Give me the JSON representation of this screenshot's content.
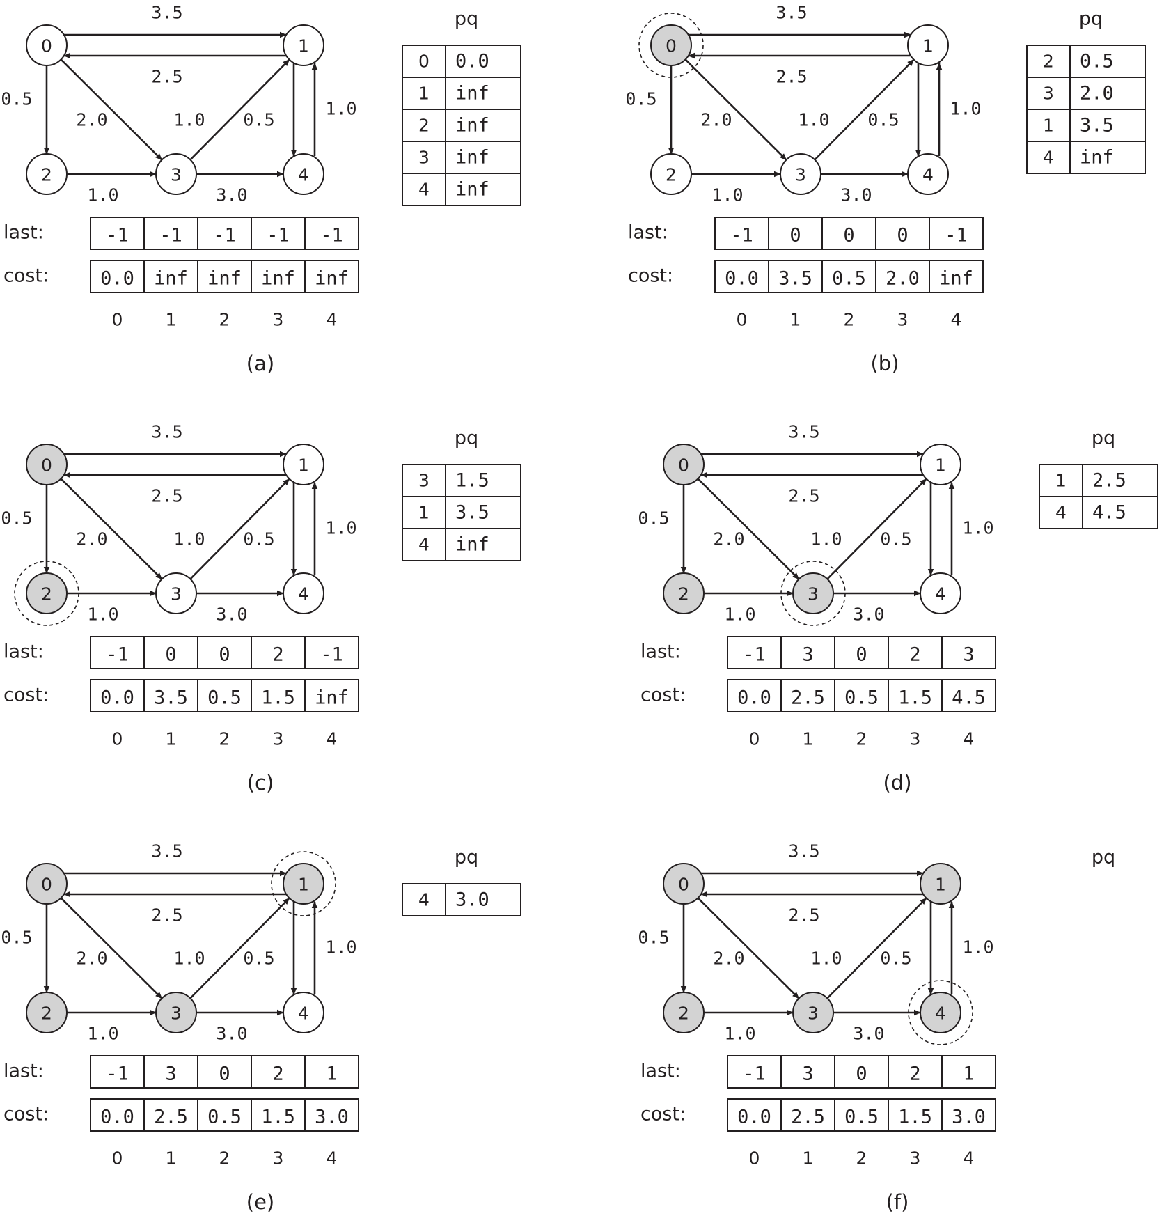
{
  "colors": {
    "ink": "#231f20",
    "visited_fill": "#d3d3d3",
    "unvisited_fill": "#ffffff",
    "background": "#ffffff"
  },
  "row_labels": {
    "last": "last:",
    "cost": "cost:"
  },
  "pq_title": "pq",
  "index_labels": [
    "0",
    "1",
    "2",
    "3",
    "4"
  ],
  "node_labels": [
    "0",
    "1",
    "2",
    "3",
    "4"
  ],
  "edges": [
    {
      "from": 0,
      "to": 1,
      "weight": "3.5"
    },
    {
      "from": 1,
      "to": 0,
      "weight": "2.5"
    },
    {
      "from": 0,
      "to": 2,
      "weight": "0.5"
    },
    {
      "from": 0,
      "to": 3,
      "weight": "2.0"
    },
    {
      "from": 2,
      "to": 3,
      "weight": "1.0"
    },
    {
      "from": 3,
      "to": 1,
      "weight": "1.0"
    },
    {
      "from": 3,
      "to": 4,
      "weight": "3.0"
    },
    {
      "from": 1,
      "to": 4,
      "weight": "0.5"
    },
    {
      "from": 4,
      "to": 1,
      "weight": "1.0"
    }
  ],
  "panels": [
    {
      "caption": "(a)",
      "visited": [],
      "current": null,
      "last": [
        "-1",
        "-1",
        "-1",
        "-1",
        "-1"
      ],
      "cost": [
        "0.0",
        "inf",
        "inf",
        "inf",
        "inf"
      ],
      "pq": [
        [
          "0",
          "0.0"
        ],
        [
          "1",
          "inf"
        ],
        [
          "2",
          "inf"
        ],
        [
          "3",
          "inf"
        ],
        [
          "4",
          "inf"
        ]
      ]
    },
    {
      "caption": "(b)",
      "visited": [
        0
      ],
      "current": 0,
      "last": [
        "-1",
        "0",
        "0",
        "0",
        "-1"
      ],
      "cost": [
        "0.0",
        "3.5",
        "0.5",
        "2.0",
        "inf"
      ],
      "pq": [
        [
          "2",
          "0.5"
        ],
        [
          "3",
          "2.0"
        ],
        [
          "1",
          "3.5"
        ],
        [
          "4",
          "inf"
        ]
      ]
    },
    {
      "caption": "(c)",
      "visited": [
        0,
        2
      ],
      "current": 2,
      "last": [
        "-1",
        "0",
        "0",
        "2",
        "-1"
      ],
      "cost": [
        "0.0",
        "3.5",
        "0.5",
        "1.5",
        "inf"
      ],
      "pq": [
        [
          "3",
          "1.5"
        ],
        [
          "1",
          "3.5"
        ],
        [
          "4",
          "inf"
        ]
      ]
    },
    {
      "caption": "(d)",
      "visited": [
        0,
        2,
        3
      ],
      "current": 3,
      "last": [
        "-1",
        "3",
        "0",
        "2",
        "3"
      ],
      "cost": [
        "0.0",
        "2.5",
        "0.5",
        "1.5",
        "4.5"
      ],
      "pq": [
        [
          "1",
          "2.5"
        ],
        [
          "4",
          "4.5"
        ]
      ]
    },
    {
      "caption": "(e)",
      "visited": [
        0,
        2,
        3,
        1
      ],
      "current": 1,
      "last": [
        "-1",
        "3",
        "0",
        "2",
        "1"
      ],
      "cost": [
        "0.0",
        "2.5",
        "0.5",
        "1.5",
        "3.0"
      ],
      "pq": [
        [
          "4",
          "3.0"
        ]
      ]
    },
    {
      "caption": "(f)",
      "visited": [
        0,
        2,
        3,
        1,
        4
      ],
      "current": 4,
      "last": [
        "-1",
        "3",
        "0",
        "2",
        "1"
      ],
      "cost": [
        "0.0",
        "2.5",
        "0.5",
        "1.5",
        "3.0"
      ],
      "pq": []
    }
  ]
}
